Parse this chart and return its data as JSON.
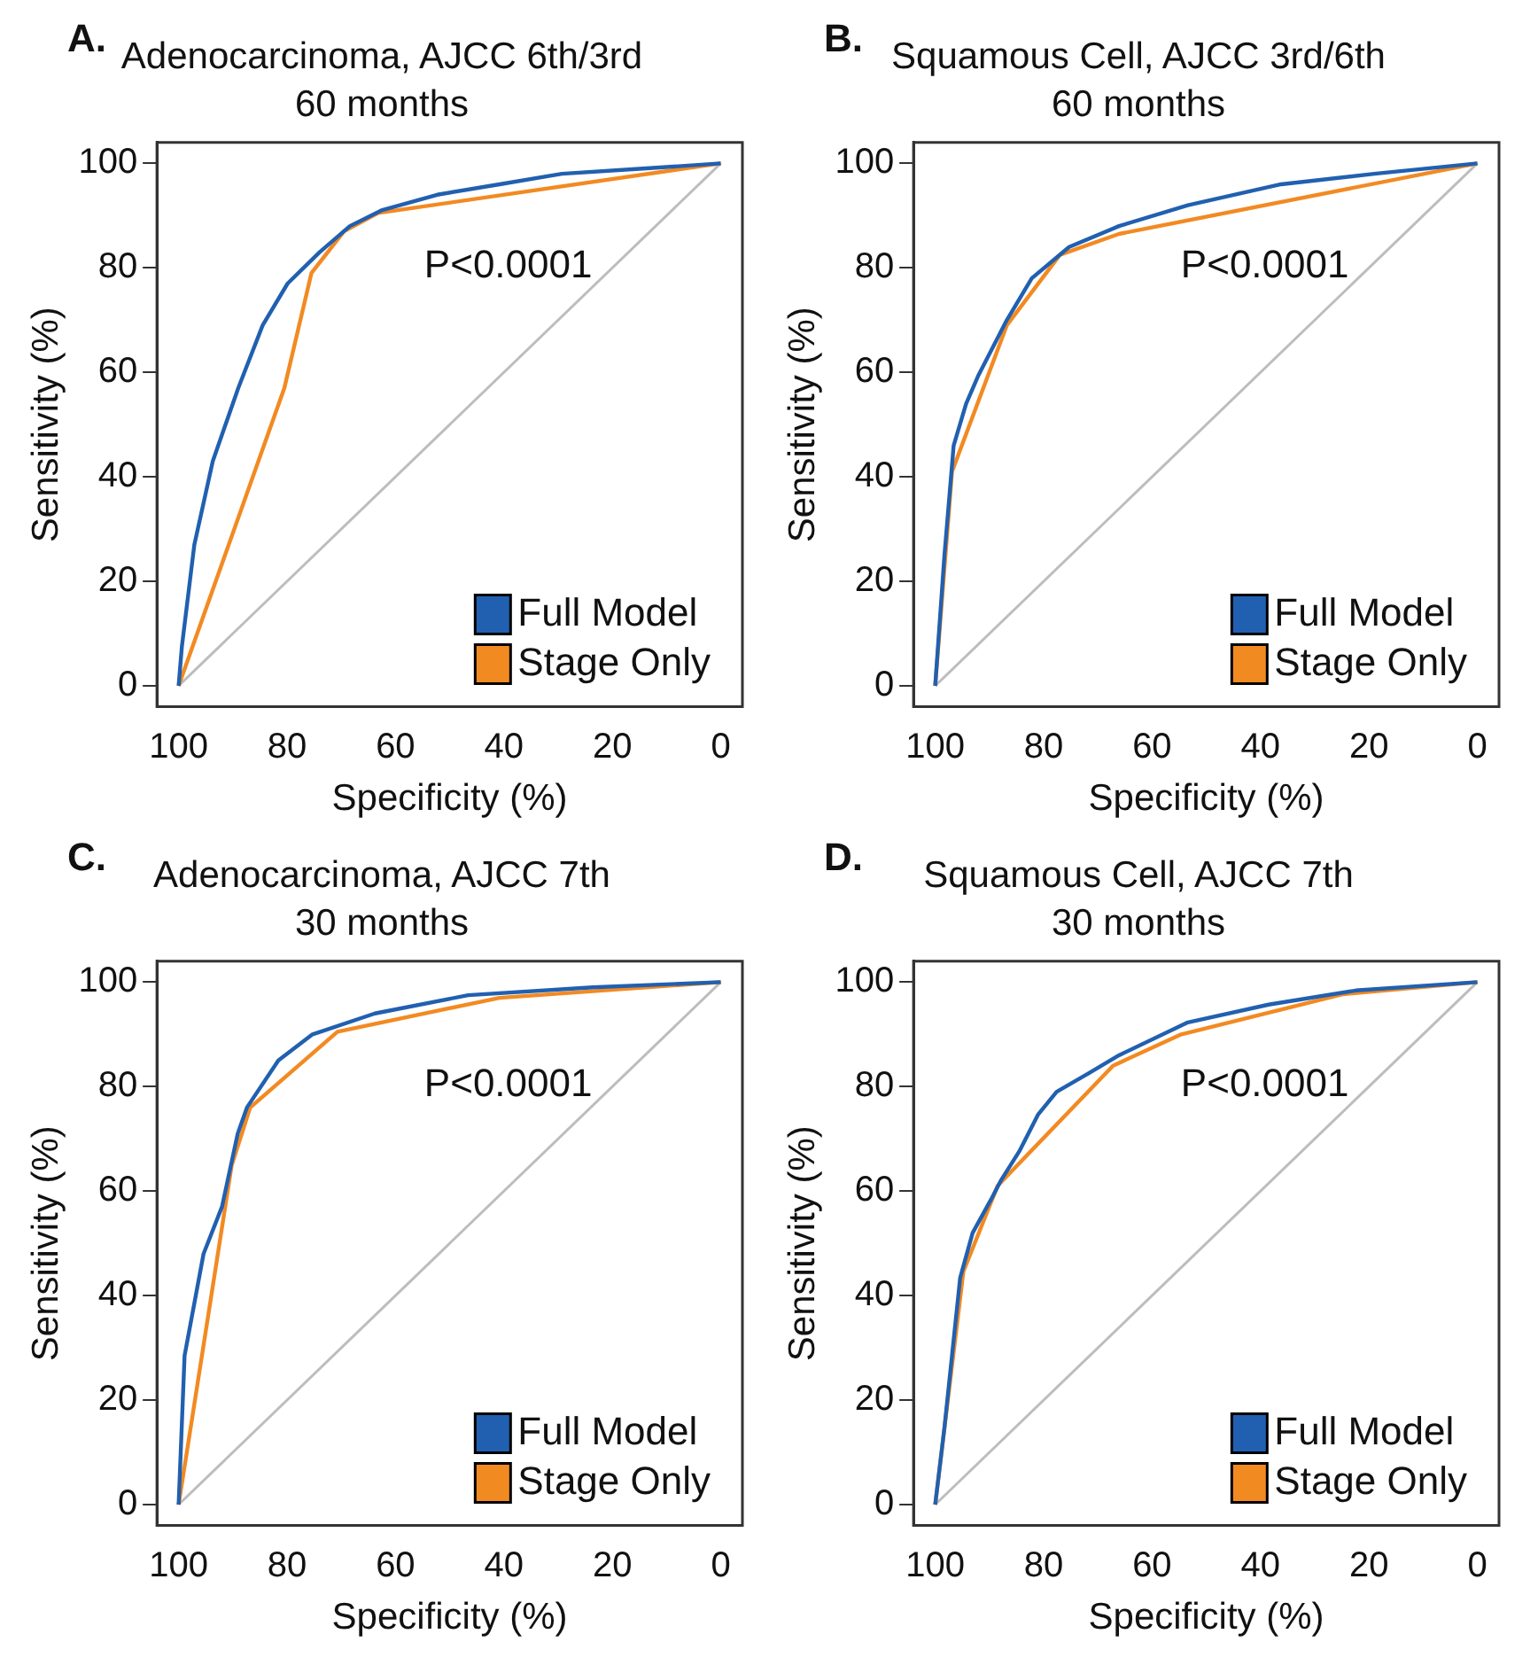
{
  "chart_data": [
    {
      "type": "line",
      "title": "Adenocarcinoma, AJCC 6th/3rd",
      "subtitle": "60 months",
      "xlabel": "Specificity (%)",
      "ylabel": "Sensitivity (%)",
      "xlim": [
        104,
        -4
      ],
      "ylim": [
        -4,
        104
      ],
      "xticks": [
        100,
        80,
        60,
        40,
        20,
        0
      ],
      "yticks": [
        0,
        20,
        40,
        60,
        80,
        100
      ],
      "legend": "bottom right",
      "annotations": [
        "A.",
        "P<0.0001"
      ],
      "series": [
        {
          "name": "Full Model",
          "color": "#2160b0",
          "x": [
            100,
            99.4,
            97.1,
            93.7,
            89,
            84.5,
            79.9,
            74,
            68.4,
            62.6,
            52.3,
            40.8,
            29.3,
            14.4,
            0
          ],
          "values": [
            0,
            7.5,
            27,
            43,
            57,
            69,
            77,
            83,
            88,
            91,
            94,
            96,
            98,
            99,
            100
          ]
        },
        {
          "name": "Stage Only",
          "color": "#f28a22",
          "x": [
            100,
            80.5,
            75.5,
            69.5,
            63.2,
            0
          ],
          "values": [
            0,
            57,
            79,
            87,
            90.5,
            100
          ]
        },
        {
          "type": "line",
          "color": "#bdbdbd",
          "x": [
            100,
            0
          ],
          "values": [
            0,
            100
          ]
        }
      ]
    },
    {
      "type": "line",
      "title": "Squamous Cell, AJCC 3rd/6th",
      "subtitle": "60 months",
      "xlabel": "Specificity (%)",
      "ylabel": "Sensitivity (%)",
      "xlim": [
        104,
        -4
      ],
      "ylim": [
        -4,
        104
      ],
      "xticks": [
        100,
        80,
        60,
        40,
        20,
        0
      ],
      "yticks": [
        0,
        20,
        40,
        60,
        80,
        100
      ],
      "legend": "bottom right",
      "annotations": [
        "B.",
        "P<0.0001"
      ],
      "series": [
        {
          "name": "Full Model",
          "color": "#2160b0",
          "x": [
            100,
            98.3,
            96.6,
            94.3,
            92,
            86.8,
            82.2,
            75.3,
            66.1,
            53.4,
            36.2,
            19,
            0
          ],
          "values": [
            0,
            25,
            46,
            54,
            59.5,
            70,
            78,
            84,
            88,
            92,
            96,
            98,
            100
          ]
        },
        {
          "name": "Stage Only",
          "color": "#f28a22",
          "x": [
            100,
            96.9,
            86.8,
            77,
            66.1,
            0
          ],
          "values": [
            0,
            41,
            69,
            82.5,
            86.5,
            100
          ]
        },
        {
          "type": "line",
          "color": "#bdbdbd",
          "x": [
            100,
            0
          ],
          "values": [
            0,
            100
          ]
        }
      ]
    },
    {
      "type": "line",
      "title": "Adenocarcinoma, AJCC 7th",
      "subtitle": "30 months",
      "xlabel": "Specificity (%)",
      "ylabel": "Sensitivity (%)",
      "xlim": [
        104,
        -4
      ],
      "ylim": [
        -4,
        104
      ],
      "xticks": [
        100,
        80,
        60,
        40,
        20,
        0
      ],
      "yticks": [
        0,
        20,
        40,
        60,
        80,
        100
      ],
      "legend": "bottom right",
      "annotations": [
        "C.",
        "P<0.0001"
      ],
      "series": [
        {
          "name": "Full Model",
          "color": "#2160b0",
          "x": [
            100,
            98.9,
            95.4,
            92,
            89.1,
            87.4,
            81.6,
            75.3,
            63.8,
            46.6,
            23.6,
            0
          ],
          "values": [
            0,
            28.5,
            48,
            57,
            71,
            76,
            85,
            90,
            94,
            97.5,
            99,
            100
          ]
        },
        {
          "name": "Stage Only",
          "color": "#f28a22",
          "x": [
            100,
            90.2,
            86.8,
            70.7,
            40.8,
            0
          ],
          "values": [
            0,
            65,
            76,
            90.5,
            97,
            100
          ]
        },
        {
          "type": "line",
          "color": "#bdbdbd",
          "x": [
            100,
            0
          ],
          "values": [
            0,
            100
          ]
        }
      ]
    },
    {
      "type": "line",
      "title": "Squamous Cell, AJCC 7th",
      "subtitle": "30 months",
      "xlabel": "Specificity (%)",
      "ylabel": "Sensitivity (%)",
      "xlim": [
        104,
        -4
      ],
      "ylim": [
        -4,
        104
      ],
      "xticks": [
        100,
        80,
        60,
        40,
        20,
        0
      ],
      "yticks": [
        0,
        20,
        40,
        60,
        80,
        100
      ],
      "legend": "bottom right",
      "annotations": [
        "D.",
        "P<0.0001"
      ],
      "series": [
        {
          "name": "Full Model",
          "color": "#2160b0",
          "x": [
            100,
            98.3,
            95.4,
            93.1,
            89.7,
            87.9,
            84.5,
            81,
            77.6,
            71.8,
            66.1,
            53.4,
            38.5,
            22.4,
            0
          ],
          "values": [
            0,
            14.7,
            43.4,
            52,
            58.4,
            62,
            67.6,
            74.7,
            79,
            82.5,
            86,
            92.3,
            95.7,
            98.4,
            100
          ]
        },
        {
          "name": "Stage Only",
          "color": "#f28a22",
          "x": [
            100,
            94.8,
            88.5,
            67.2,
            54.6,
            24.7,
            0
          ],
          "values": [
            0,
            44.6,
            61,
            84,
            90,
            97.7,
            100
          ]
        },
        {
          "type": "line",
          "color": "#bdbdbd",
          "x": [
            100,
            0
          ],
          "values": [
            0,
            100
          ]
        }
      ]
    }
  ]
}
